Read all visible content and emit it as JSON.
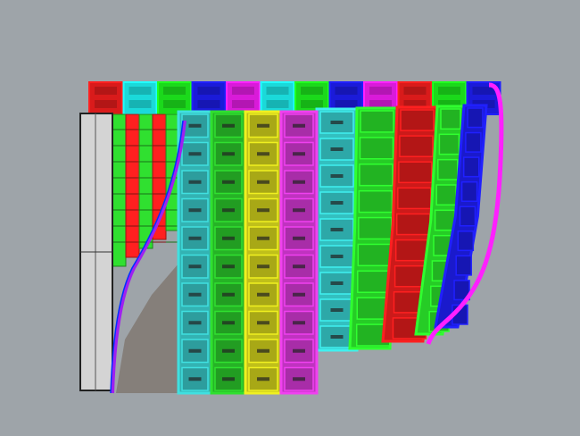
{
  "viewport": {
    "background": "#9ea4a9",
    "back_row_colors": [
      "#ff2020",
      "#20ffff",
      "#20ff20",
      "#2020ff",
      "#ff20ff",
      "#20ffff",
      "#20ff20",
      "#2020ff",
      "#ff20ff",
      "#ff2020",
      "#20ff20",
      "#2020ff"
    ],
    "front_columns": [
      {
        "color": "#40e0e0",
        "rows": 10
      },
      {
        "color": "#30e030",
        "rows": 10
      },
      {
        "color": "#f0f020",
        "rows": 10
      },
      {
        "color": "#f040f0",
        "rows": 10
      },
      {
        "color": "#40f0f0",
        "rows": 9
      },
      {
        "color": "#30ff30",
        "rows": 9
      },
      {
        "color": "#ff2020",
        "rows": 9
      },
      {
        "color": "#30ff30",
        "rows": 9
      },
      {
        "color": "#2020ff",
        "rows": 9
      }
    ],
    "left_strip_colors": [
      "#30e030",
      "#ff2020",
      "#30e030",
      "#ff2020",
      "#30e030"
    ],
    "frame_color": "#d0d0d0",
    "shadow_color": "#857f7a"
  }
}
